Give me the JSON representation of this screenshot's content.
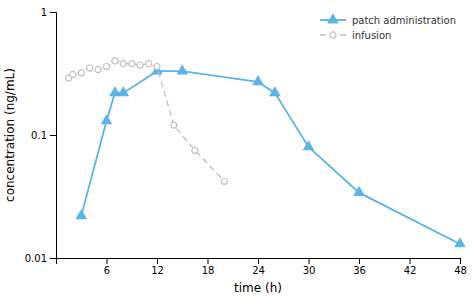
{
  "chart_data": {
    "type": "line",
    "xlabel": "time (h)",
    "ylabel": "concentration (ng/mL)",
    "series": [
      {
        "name": "patch administration",
        "color": "#5ab4e8",
        "marker": "triangle",
        "line_style": "solid",
        "x": [
          3,
          6,
          7,
          8,
          12,
          15,
          24,
          26,
          30,
          36,
          48
        ],
        "values": [
          0.022,
          0.13,
          0.22,
          0.22,
          0.33,
          0.33,
          0.27,
          0.22,
          0.08,
          0.034,
          0.013
        ]
      },
      {
        "name": "infusion",
        "color": "#c0c0c0",
        "marker": "circle",
        "line_style": "dashed",
        "x": [
          1.5,
          2.0,
          3.0,
          4.0,
          5.0,
          6.0,
          7.0,
          8.0,
          9.0,
          10.0,
          11.0,
          12.0,
          14.0,
          16.5,
          20.0
        ],
        "values": [
          0.29,
          0.31,
          0.32,
          0.35,
          0.34,
          0.36,
          0.4,
          0.38,
          0.38,
          0.37,
          0.38,
          0.36,
          0.12,
          0.075,
          0.042
        ]
      }
    ],
    "xlim": [
      0,
      48
    ],
    "xticks": [
      6,
      12,
      18,
      24,
      30,
      36,
      42,
      48
    ],
    "ylim": [
      0.01,
      1
    ],
    "yticks": [
      0.01,
      0.1,
      1
    ],
    "log": "y",
    "grid": false,
    "legend": "upper right"
  }
}
